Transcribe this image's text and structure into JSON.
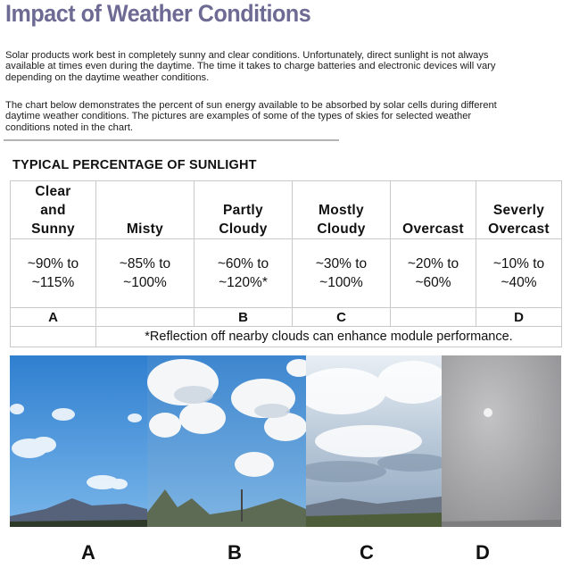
{
  "title": "Impact of Weather Conditions",
  "paragraphs": [
    "Solar products work best in completely sunny and clear conditions. Unfortunately, direct sunlight is not always available at times even during the daytime. The time it takes to charge batteries and electronic devices will vary depending on the daytime weather conditions.",
    "The chart below demonstrates the percent of sun energy available to be absorbed by solar cells during different daytime weather conditions. The pictures are examples of some of the types of skies for selected weather conditions noted in the chart."
  ],
  "chart_data": {
    "type": "table",
    "title": "TYPICAL PERCENTAGE OF SUNLIGHT",
    "columns": [
      {
        "condition": [
          "Clear",
          "and",
          "Sunny"
        ],
        "range": [
          "~90% to",
          "~115%"
        ],
        "label": "A"
      },
      {
        "condition": [
          "Misty"
        ],
        "range": [
          "~85% to",
          "~100%"
        ],
        "label": ""
      },
      {
        "condition": [
          "Partly",
          "Cloudy"
        ],
        "range": [
          "~60% to",
          "~120%*"
        ],
        "label": "B"
      },
      {
        "condition": [
          "Mostly",
          "Cloudy"
        ],
        "range": [
          "~30% to",
          "~100%"
        ],
        "label": "C"
      },
      {
        "condition": [
          "Overcast"
        ],
        "range": [
          "~20% to",
          "~60%"
        ],
        "label": ""
      },
      {
        "condition": [
          "Severly",
          "Overcast"
        ],
        "range": [
          "~10% to",
          "~40%"
        ],
        "label": "D"
      }
    ],
    "footnote": "*Reflection off nearby clouds can enhance module performance."
  },
  "photos": [
    {
      "label": "A",
      "sky": "clear-and-sunny",
      "color": "#3f8fd6"
    },
    {
      "label": "B",
      "sky": "partly-cloudy",
      "color": "#4a8fd0"
    },
    {
      "label": "C",
      "sky": "mostly-cloudy",
      "color": "#b9c8d6"
    },
    {
      "label": "D",
      "sky": "severly-overcast",
      "color": "#a9a9ab"
    }
  ]
}
